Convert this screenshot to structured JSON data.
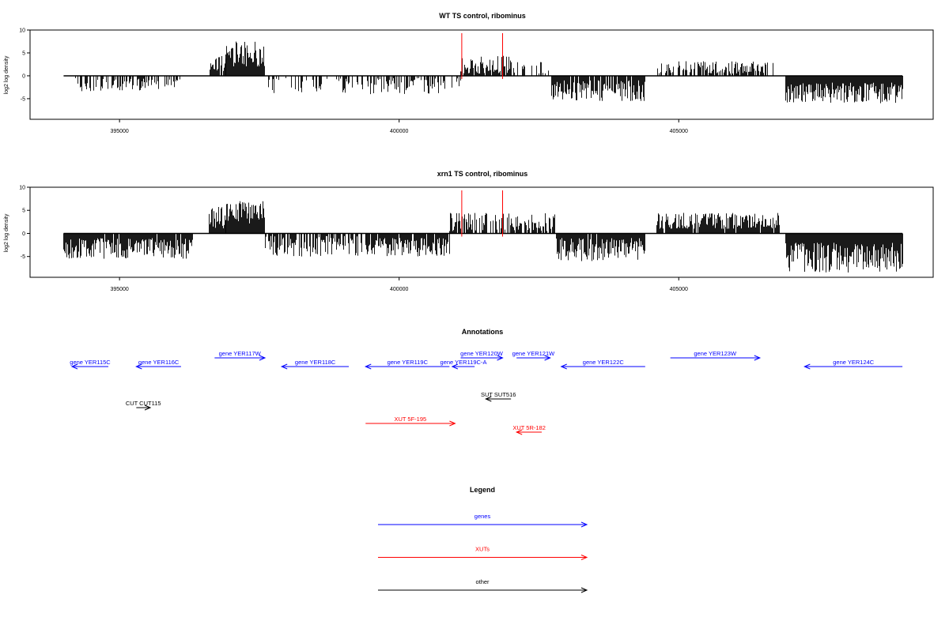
{
  "colors": {
    "genes": "#0000ff",
    "xuts": "#ff0000",
    "other": "#000000",
    "axis": "#000000",
    "mark": "#ff0000"
  },
  "chart_data": [
    {
      "type": "bar",
      "title": "WT TS control, ribominus",
      "ylabel": "log2 log density",
      "xlim": [
        393400,
        409550
      ],
      "ylim": [
        -9.5,
        10
      ],
      "x_ticks": [
        395000,
        400000,
        405000
      ],
      "x_tick_labels": [
        "395000",
        "400000",
        "405000"
      ],
      "y_ticks": [
        -5,
        0,
        5,
        10
      ],
      "y_tick_labels": [
        "-5",
        "0",
        "5",
        "10"
      ],
      "baseline_range": [
        394000,
        409000
      ],
      "red_markers": [
        401120,
        401850
      ],
      "segments": [
        {
          "start": 394200,
          "end": 396100,
          "sign": -1,
          "density": 0.45,
          "min": 0.5,
          "max": 3.5
        },
        {
          "start": 396600,
          "end": 396900,
          "sign": 1,
          "density": 0.9,
          "min": 1.0,
          "max": 5.0
        },
        {
          "start": 396900,
          "end": 397600,
          "sign": 1,
          "density": 1.0,
          "min": 2.0,
          "max": 7.5
        },
        {
          "start": 397600,
          "end": 399800,
          "sign": -1,
          "density": 0.4,
          "min": 0.5,
          "max": 4.0
        },
        {
          "start": 399800,
          "end": 400700,
          "sign": -1,
          "density": 0.6,
          "min": 0.5,
          "max": 4.0
        },
        {
          "start": 400700,
          "end": 401100,
          "sign": -1,
          "density": 0.4,
          "min": 0.5,
          "max": 3.0
        },
        {
          "start": 401100,
          "end": 402000,
          "sign": 1,
          "density": 0.95,
          "min": 0.5,
          "max": 4.5
        },
        {
          "start": 402000,
          "end": 402700,
          "sign": 1,
          "density": 0.3,
          "min": 0.5,
          "max": 3.0
        },
        {
          "start": 402700,
          "end": 404400,
          "sign": -1,
          "density": 0.9,
          "min": 1.0,
          "max": 5.5
        },
        {
          "start": 404600,
          "end": 406700,
          "sign": 1,
          "density": 0.55,
          "min": 0.5,
          "max": 3.2
        },
        {
          "start": 406900,
          "end": 409000,
          "sign": -1,
          "density": 1.0,
          "min": 1.5,
          "max": 6.0
        }
      ]
    },
    {
      "type": "bar",
      "title": "xrn1 TS control, ribominus",
      "ylabel": "log2 log density",
      "xlim": [
        393400,
        409550
      ],
      "ylim": [
        -9.5,
        10
      ],
      "x_ticks": [
        395000,
        400000,
        405000
      ],
      "x_tick_labels": [
        "395000",
        "400000",
        "405000"
      ],
      "y_ticks": [
        -5,
        0,
        5,
        10
      ],
      "y_tick_labels": [
        "-5",
        "0",
        "5",
        "10"
      ],
      "baseline_range": [
        394000,
        409000
      ],
      "red_markers": [
        401120,
        401850
      ],
      "segments": [
        {
          "start": 394000,
          "end": 396300,
          "sign": -1,
          "density": 0.95,
          "min": 1.0,
          "max": 5.5
        },
        {
          "start": 396600,
          "end": 396900,
          "sign": 1,
          "density": 1.0,
          "min": 1.0,
          "max": 6.0
        },
        {
          "start": 396900,
          "end": 397600,
          "sign": 1,
          "density": 1.0,
          "min": 2.0,
          "max": 7.0
        },
        {
          "start": 397600,
          "end": 399400,
          "sign": -1,
          "density": 0.7,
          "min": 0.5,
          "max": 5.0
        },
        {
          "start": 399400,
          "end": 400900,
          "sign": -1,
          "density": 0.95,
          "min": 1.0,
          "max": 5.0
        },
        {
          "start": 400900,
          "end": 402800,
          "sign": 1,
          "density": 0.7,
          "min": 0.5,
          "max": 4.5
        },
        {
          "start": 402800,
          "end": 404400,
          "sign": -1,
          "density": 0.95,
          "min": 1.0,
          "max": 6.0
        },
        {
          "start": 404600,
          "end": 406800,
          "sign": 1,
          "density": 0.95,
          "min": 1.0,
          "max": 4.5
        },
        {
          "start": 406900,
          "end": 409000,
          "sign": -1,
          "density": 1.0,
          "min": 2.0,
          "max": 8.5
        }
      ]
    }
  ],
  "annotations": {
    "title": "Annotations",
    "features": [
      {
        "label": "gene YER115C",
        "kind": "genes",
        "from": 394800,
        "to": 394150,
        "row": 1
      },
      {
        "label": "gene YER116C",
        "kind": "genes",
        "from": 396100,
        "to": 395300,
        "row": 1
      },
      {
        "label": "gene YER117W",
        "kind": "genes",
        "from": 396700,
        "to": 397600,
        "row": 0
      },
      {
        "label": "gene YER118C",
        "kind": "genes",
        "from": 399100,
        "to": 397900,
        "row": 1
      },
      {
        "label": "gene YER119C",
        "kind": "genes",
        "from": 400900,
        "to": 399400,
        "row": 1
      },
      {
        "label": "gene YER119C-A",
        "kind": "genes",
        "from": 401350,
        "to": 400950,
        "row": 1
      },
      {
        "label": "gene YER120W",
        "kind": "genes",
        "from": 401100,
        "to": 401850,
        "row": 0
      },
      {
        "label": "gene YER121W",
        "kind": "genes",
        "from": 402100,
        "to": 402700,
        "row": 0
      },
      {
        "label": "gene YER122C",
        "kind": "genes",
        "from": 404400,
        "to": 402900,
        "row": 1
      },
      {
        "label": "gene YER123W",
        "kind": "genes",
        "from": 404850,
        "to": 406450,
        "row": 0
      },
      {
        "label": "gene YER124C",
        "kind": "genes",
        "from": 409000,
        "to": 407250,
        "row": 1
      },
      {
        "label": "SUT SUT516",
        "kind": "other",
        "from": 402000,
        "to": 401550,
        "row": 3
      },
      {
        "label": "CUT CUT115",
        "kind": "other",
        "from": 395300,
        "to": 395550,
        "row": 4
      },
      {
        "label": "XUT 5F-195",
        "kind": "xuts",
        "from": 399400,
        "to": 401000,
        "row": 5
      },
      {
        "label": "XUT 5R-182",
        "kind": "xuts",
        "from": 402550,
        "to": 402100,
        "row": 6
      }
    ]
  },
  "legend": {
    "title": "Legend",
    "items": [
      {
        "label": "genes",
        "kind": "genes"
      },
      {
        "label": "XUTs",
        "kind": "xuts"
      },
      {
        "label": "other",
        "kind": "other"
      }
    ]
  }
}
